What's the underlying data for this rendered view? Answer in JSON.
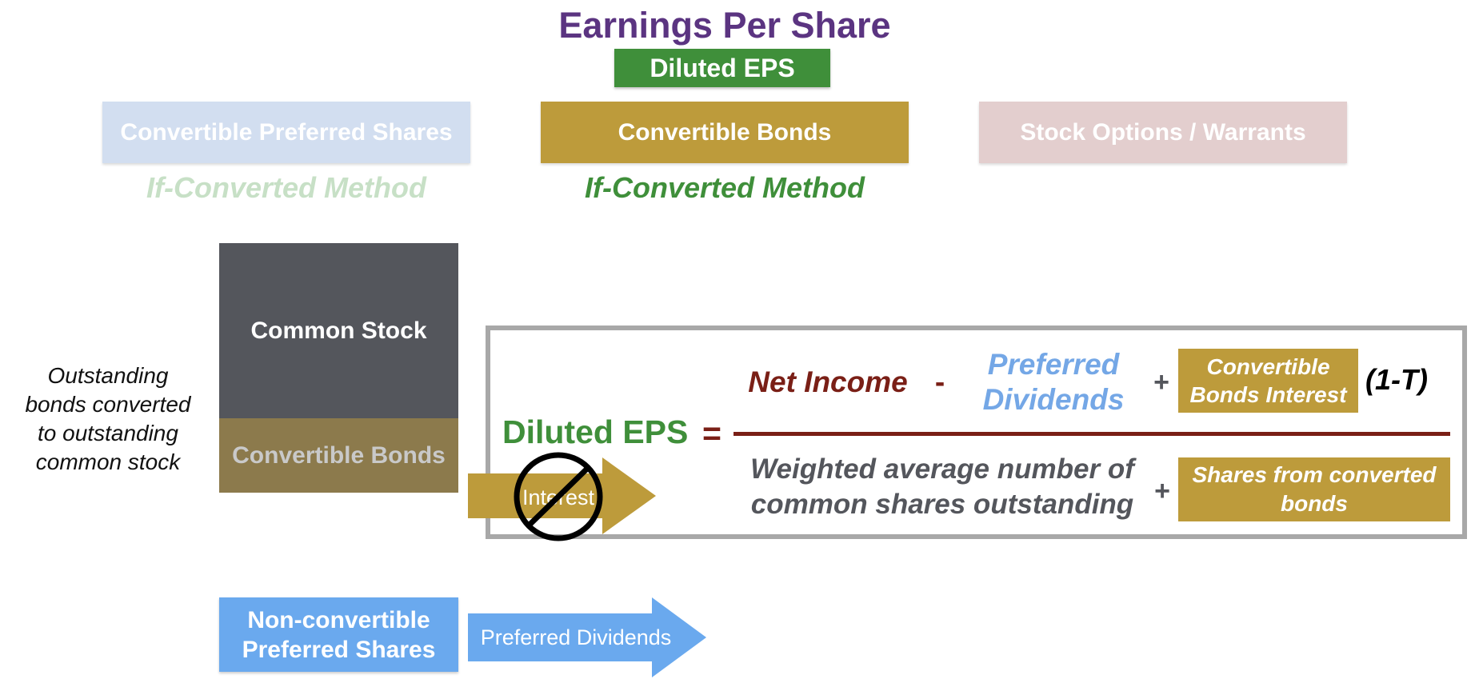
{
  "title": "Earnings Per Share",
  "badge": "Diluted EPS",
  "categories": {
    "convertible_preferred": "Convertible Preferred Shares",
    "convertible_bonds": "Convertible Bonds",
    "stock_options": "Stock Options / Warrants"
  },
  "methods": {
    "preferred_method": "If-Converted Method",
    "bonds_method": "If-Converted Method"
  },
  "blocks": {
    "common_stock": "Common Stock",
    "convertible_bonds": "Convertible Bonds",
    "non_convertible_line1": "Non-convertible",
    "non_convertible_line2": "Preferred Shares"
  },
  "side_note": "Outstanding bonds converted to outstanding common stock",
  "arrows": {
    "interest": "Interest",
    "preferred_dividends": "Preferred Dividends"
  },
  "formula": {
    "label": "Diluted EPS",
    "equals": "=",
    "net_income": "Net Income",
    "minus": "-",
    "preferred_line1": "Preferred",
    "preferred_line2": "Dividends",
    "plus_top": "+",
    "cbi_line1": "Convertible",
    "cbi_line2": "Bonds Interest",
    "tax_factor": "(1-T)",
    "wavg_line1": "Weighted average number of",
    "wavg_line2": "common shares outstanding",
    "plus_bottom": "+",
    "sfcb_line1": "Shares from converted",
    "sfcb_line2": "bonds"
  },
  "colors": {
    "title": "#5b3481",
    "green": "#3f8f3a",
    "gold": "#bd9b3b",
    "dark_gray": "#54565c",
    "maroon": "#7a1f16",
    "light_blue": "#74a7e6",
    "blue": "#6aa9ee"
  }
}
